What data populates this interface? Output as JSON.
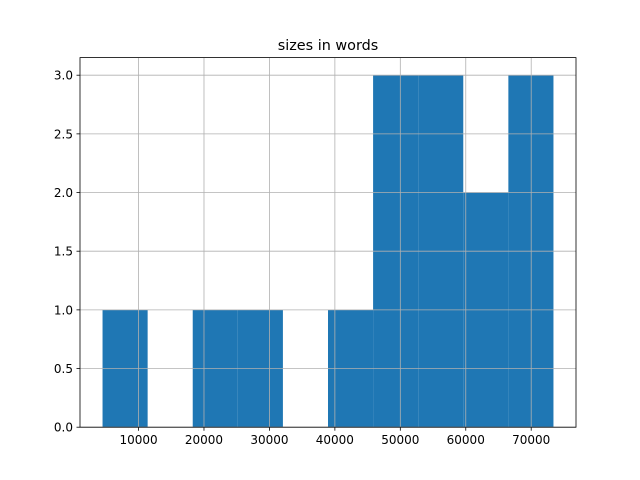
{
  "chart_data": {
    "type": "histogram",
    "title": "sizes in words",
    "bins": [
      4500,
      11390,
      18280,
      25170,
      32060,
      38950,
      45840,
      52730,
      59620,
      66510,
      73400
    ],
    "values": [
      1,
      0,
      1,
      1,
      0,
      1,
      3,
      3,
      2,
      3
    ],
    "color": "#1f77b4",
    "xlim": [
      1055,
      76845
    ],
    "xticks": [
      10000,
      20000,
      30000,
      40000,
      50000,
      60000,
      70000
    ],
    "ylim": [
      0,
      3.15
    ],
    "yticks": [
      {
        "value": 0,
        "label": "0.0"
      },
      {
        "value": 0.5,
        "label": "0.5"
      },
      {
        "value": 1,
        "label": "1.0"
      },
      {
        "value": 1.5,
        "label": "1.5"
      },
      {
        "value": 2,
        "label": "2.0"
      },
      {
        "value": 2.5,
        "label": "2.5"
      },
      {
        "value": 3,
        "label": "3.0"
      }
    ],
    "grid": true
  }
}
